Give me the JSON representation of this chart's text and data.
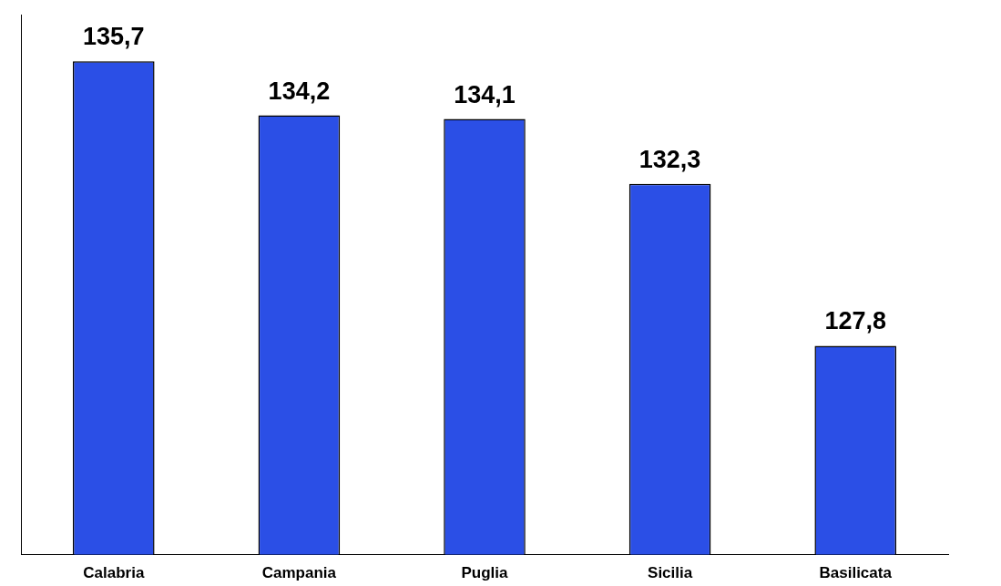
{
  "chart_data": {
    "type": "bar",
    "categories": [
      "Calabria",
      "Campania",
      "Puglia",
      "Sicilia",
      "Basilicata"
    ],
    "values": [
      135.7,
      134.2,
      134.1,
      132.3,
      127.8
    ],
    "value_labels": [
      "135,7",
      "134,2",
      "134,1",
      "132,3",
      "127,8"
    ],
    "color": "#2b4fe6",
    "ylim": [
      122,
      137
    ],
    "grid": false,
    "legend": false,
    "tick_labels": "x"
  }
}
